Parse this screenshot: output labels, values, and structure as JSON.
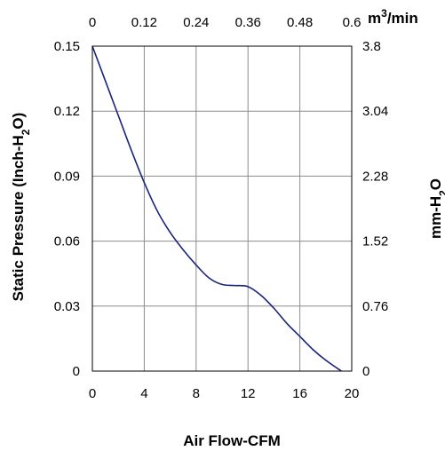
{
  "chart_data": {
    "type": "line",
    "xlabel": "Air Flow-CFM",
    "ylabel": "Static Pressure (Inch-H2O)",
    "ylabel_parts": {
      "main": "Static Pressure (Inch-H",
      "sub": "2",
      "tail": "O)"
    },
    "y2label_parts": {
      "main": "mm-H",
      "sub": "2",
      "tail": "O"
    },
    "x2label_parts": {
      "main": "m",
      "sup": "3",
      "tail": "/min"
    },
    "xlim": [
      0,
      20
    ],
    "ylim": [
      0,
      0.15
    ],
    "x2lim": [
      0,
      0.6
    ],
    "y2lim": [
      0,
      3.8
    ],
    "x_ticks": [
      "0",
      "4",
      "8",
      "12",
      "16",
      "20"
    ],
    "y_ticks": [
      "0",
      "0.03",
      "0.06",
      "0.09",
      "0.12",
      "0.15"
    ],
    "x2_ticks": [
      "0",
      "0.12",
      "0.24",
      "0.36",
      "0.48",
      "0.6"
    ],
    "y2_ticks": [
      "0",
      "0.76",
      "1.52",
      "2.28",
      "3.04",
      "3.8"
    ],
    "grid": true,
    "series": [
      {
        "color": "#1a237e",
        "x": [
          0,
          1,
          2,
          3,
          4,
          5,
          6,
          7,
          8,
          9,
          10,
          11,
          12,
          13,
          14,
          15,
          16,
          17,
          18,
          19.2
        ],
        "y": [
          0.15,
          0.134,
          0.118,
          0.102,
          0.087,
          0.074,
          0.064,
          0.056,
          0.049,
          0.043,
          0.04,
          0.0395,
          0.039,
          0.035,
          0.029,
          0.022,
          0.016,
          0.01,
          0.005,
          0.0
        ]
      }
    ]
  }
}
